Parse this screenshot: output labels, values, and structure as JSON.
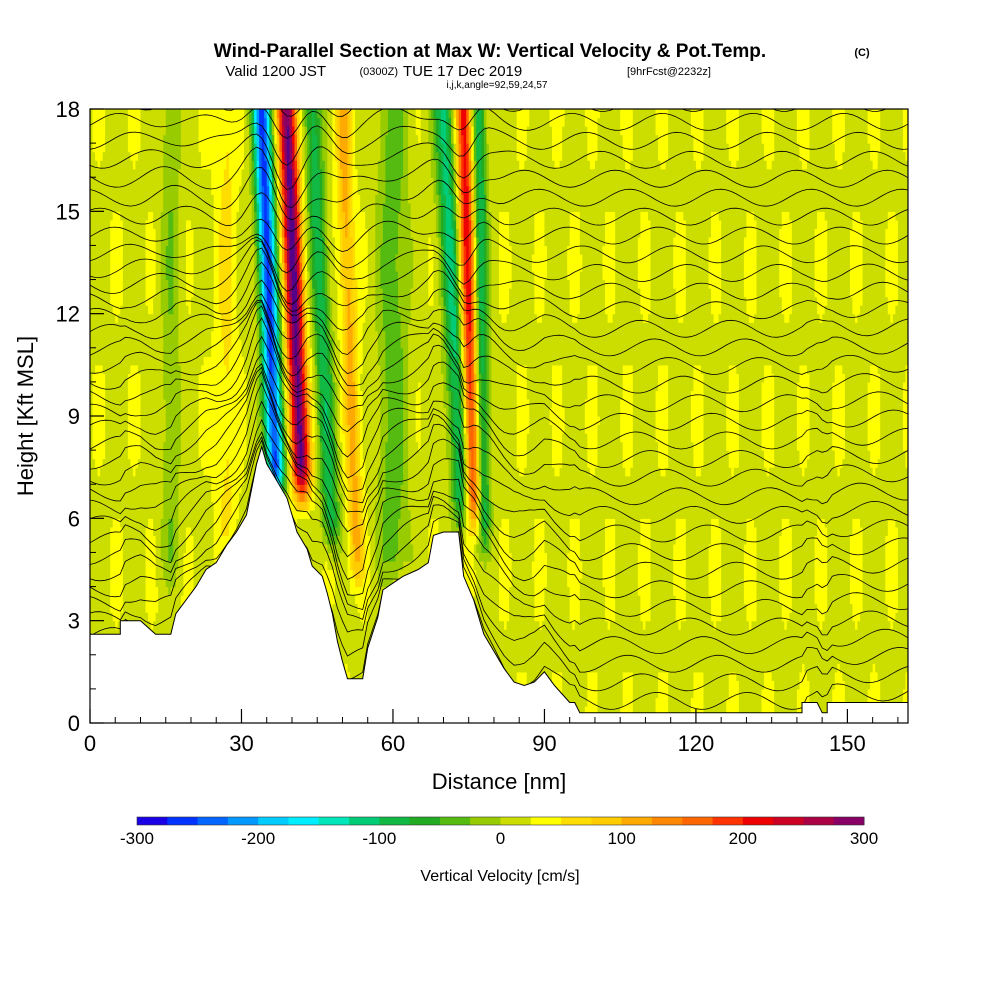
{
  "chart_data": {
    "type": "heatmap",
    "title": "Wind-Parallel Section at Max W: Vertical Velocity & Pot.Temp.",
    "title_mark": "(C)",
    "subtitle_valid": "Valid 1200 JST",
    "subtitle_utc": "(0300Z)",
    "subtitle_date": "TUE 17 Dec 2019",
    "subtitle_fcst": "[9hrFcst@2232z]",
    "subtitle_ijk": "i,j,k,angle=92,59,24,57",
    "xlabel": "Distance [nm]",
    "ylabel": "Height [Kft MSL]",
    "xlim": [
      0,
      162
    ],
    "ylim": [
      0,
      18
    ],
    "x_ticks": [
      0,
      30,
      60,
      90,
      120,
      150
    ],
    "x_tick_labels": [
      "0",
      "30",
      "60",
      "90",
      "120",
      "150"
    ],
    "y_ticks": [
      0,
      3,
      6,
      9,
      12,
      15,
      18
    ],
    "y_tick_labels": [
      "0",
      "3",
      "6",
      "9",
      "12",
      "15",
      "18"
    ],
    "colorbar": {
      "label": "Vertical Velocity [cm/s]",
      "min": -300,
      "max": 300,
      "step": 25,
      "tick_values": [
        -300,
        -200,
        -100,
        0,
        100,
        200,
        300
      ],
      "tick_labels": [
        "-300",
        "-200",
        "-100",
        "0",
        "100",
        "200",
        "300"
      ],
      "colors": [
        "#1a00e6",
        "#0033ff",
        "#0066ff",
        "#0099ff",
        "#00ccff",
        "#00eeff",
        "#00e6bb",
        "#00cc77",
        "#11b844",
        "#22aa22",
        "#55bb11",
        "#99cc00",
        "#ccdd00",
        "#ffff00",
        "#ffdd00",
        "#ffcc00",
        "#ffaa00",
        "#ff8800",
        "#ff6600",
        "#ff3300",
        "#ee0000",
        "#cc0022",
        "#aa0044",
        "#880066",
        "#550088"
      ]
    },
    "terrain_height_kft": [
      [
        0,
        2.6
      ],
      [
        6,
        2.6
      ],
      [
        6,
        3.0
      ],
      [
        10,
        3.0
      ],
      [
        13,
        2.6
      ],
      [
        16,
        2.6
      ],
      [
        17,
        3.2
      ],
      [
        19,
        3.6
      ],
      [
        21,
        4.0
      ],
      [
        23,
        4.5
      ],
      [
        25,
        4.7
      ],
      [
        27,
        5.2
      ],
      [
        29,
        5.6
      ],
      [
        31,
        6.1
      ],
      [
        33,
        7.6
      ],
      [
        34,
        8.1
      ],
      [
        35,
        7.6
      ],
      [
        37,
        7.1
      ],
      [
        39,
        6.6
      ],
      [
        40,
        6.1
      ],
      [
        41,
        5.6
      ],
      [
        43,
        5.1
      ],
      [
        44,
        4.6
      ],
      [
        46,
        4.3
      ],
      [
        47,
        3.8
      ],
      [
        48,
        3.2
      ],
      [
        49,
        2.4
      ],
      [
        50,
        1.8
      ],
      [
        51,
        1.3
      ],
      [
        54,
        1.3
      ],
      [
        55,
        2.2
      ],
      [
        57,
        3.1
      ],
      [
        58,
        3.9
      ],
      [
        60,
        4.1
      ],
      [
        62,
        4.3
      ],
      [
        65,
        4.5
      ],
      [
        67,
        4.7
      ],
      [
        68,
        5.5
      ],
      [
        70,
        5.6
      ],
      [
        73,
        5.6
      ],
      [
        74,
        4.3
      ],
      [
        76,
        3.6
      ],
      [
        77,
        3.1
      ],
      [
        78,
        2.6
      ],
      [
        80,
        2.1
      ],
      [
        82,
        1.6
      ],
      [
        84,
        1.2
      ],
      [
        86,
        1.1
      ],
      [
        88,
        1.2
      ],
      [
        90,
        1.5
      ],
      [
        92,
        1.1
      ],
      [
        95,
        0.6
      ],
      [
        96,
        0.6
      ],
      [
        97,
        0.3
      ],
      [
        120,
        0.3
      ],
      [
        135,
        0.3
      ],
      [
        141,
        0.3
      ],
      [
        141,
        0.6
      ],
      [
        144,
        0.6
      ],
      [
        145,
        0.3
      ],
      [
        146,
        0.3
      ],
      [
        146,
        0.6
      ],
      [
        152,
        0.6
      ],
      [
        162,
        0.6
      ]
    ],
    "vertical_velocity_features": [
      {
        "x_center_nm": 34,
        "x_tilt_nm": 3,
        "base_kft": 6.5,
        "top_kft": 18,
        "amplitude_cms": -280,
        "width_nm": 1.8
      },
      {
        "x_center_nm": 39,
        "x_tilt_nm": 3,
        "base_kft": 6.5,
        "top_kft": 18,
        "amplitude_cms": 290,
        "width_nm": 1.8
      },
      {
        "x_center_nm": 44,
        "x_tilt_nm": 4,
        "base_kft": 5.0,
        "top_kft": 18,
        "amplitude_cms": -110,
        "width_nm": 1.8
      },
      {
        "x_center_nm": 50,
        "x_tilt_nm": 3,
        "base_kft": 4.0,
        "top_kft": 18,
        "amplitude_cms": 90,
        "width_nm": 1.5
      },
      {
        "x_center_nm": 70,
        "x_tilt_nm": 4,
        "base_kft": 5.6,
        "top_kft": 18,
        "amplitude_cms": -130,
        "width_nm": 2.0
      },
      {
        "x_center_nm": 74,
        "x_tilt_nm": 2,
        "base_kft": 5.6,
        "top_kft": 18,
        "amplitude_cms": 200,
        "width_nm": 1.6
      },
      {
        "x_center_nm": 77,
        "x_tilt_nm": 1,
        "base_kft": 5.0,
        "top_kft": 18,
        "amplitude_cms": -120,
        "width_nm": 1.4
      },
      {
        "x_center_nm": 16,
        "x_tilt_nm": 0,
        "base_kft": 4.0,
        "top_kft": 18,
        "amplitude_cms": -40,
        "width_nm": 2.0
      },
      {
        "x_center_nm": 27,
        "x_tilt_nm": 0,
        "base_kft": 5.0,
        "top_kft": 18,
        "amplitude_cms": 35,
        "width_nm": 2.0
      },
      {
        "x_center_nm": 60,
        "x_tilt_nm": 0,
        "base_kft": 4.0,
        "top_kft": 18,
        "amplitude_cms": -60,
        "width_nm": 3.0
      }
    ],
    "theta_contour_count": 36
  }
}
